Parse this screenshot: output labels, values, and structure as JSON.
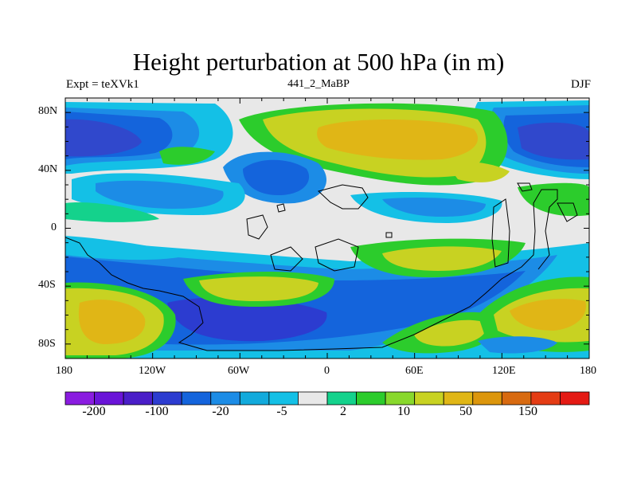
{
  "title": "Height perturbation at 500 hPa (in m)",
  "subtitle_left": "Expt = teXVk1",
  "subtitle_center": "441_2_MaBP",
  "subtitle_right": "DJF",
  "map": {
    "lon_ticks": [
      "180",
      "120W",
      "60W",
      "0",
      "60E",
      "120E",
      "180"
    ],
    "lat_ticks": [
      "80N",
      "40N",
      "0",
      "40S",
      "80S"
    ]
  },
  "colorbar": {
    "colors": [
      "#8a1ce0",
      "#6a14d8",
      "#4a1ec8",
      "#2c3cd0",
      "#1464dc",
      "#1c8ce6",
      "#12aadc",
      "#14c0e6",
      "#e8e8e8",
      "#14d28c",
      "#2ccc2c",
      "#88d82c",
      "#c8d222",
      "#e0b616",
      "#dc960c",
      "#d86a10",
      "#e43c14",
      "#e41a14"
    ],
    "labels": [
      "-200",
      "-100",
      "-20",
      "-5",
      "2",
      "10",
      "50",
      "150"
    ]
  }
}
